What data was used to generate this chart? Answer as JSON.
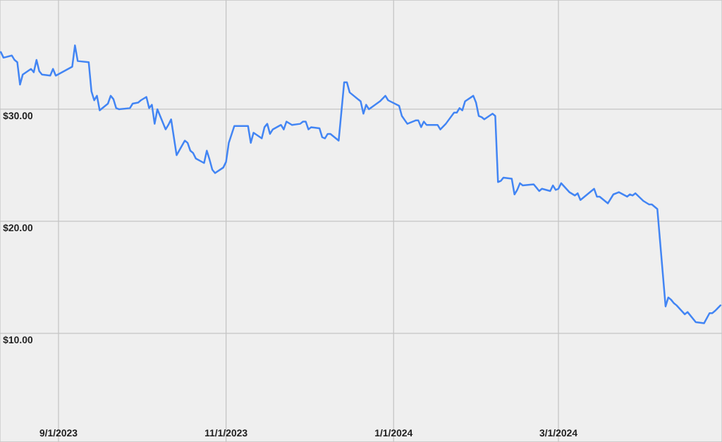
{
  "chart_data": {
    "type": "line",
    "x": [
      "2023-08-11",
      "2023-08-12",
      "2023-08-15",
      "2023-08-16",
      "2023-08-17",
      "2023-08-18",
      "2023-08-19",
      "2023-08-22",
      "2023-08-23",
      "2023-08-24",
      "2023-08-25",
      "2023-08-26",
      "2023-08-29",
      "2023-08-30",
      "2023-08-31",
      "2023-09-06",
      "2023-09-07",
      "2023-09-08",
      "2023-09-12",
      "2023-09-13",
      "2023-09-14",
      "2023-09-15",
      "2023-09-16",
      "2023-09-19",
      "2023-09-20",
      "2023-09-21",
      "2023-09-22",
      "2023-09-23",
      "2023-09-27",
      "2023-09-28",
      "2023-09-30",
      "2023-10-01",
      "2023-10-03",
      "2023-10-04",
      "2023-10-05",
      "2023-10-06",
      "2023-10-07",
      "2023-10-10",
      "2023-10-11",
      "2023-10-12",
      "2023-10-14",
      "2023-10-17",
      "2023-10-18",
      "2023-10-19",
      "2023-10-20",
      "2023-10-21",
      "2023-10-24",
      "2023-10-25",
      "2023-10-26",
      "2023-10-27",
      "2023-10-28",
      "2023-10-31",
      "2023-11-01",
      "2023-11-02",
      "2023-11-04",
      "2023-11-09",
      "2023-11-10",
      "2023-11-11",
      "2023-11-14",
      "2023-11-15",
      "2023-11-16",
      "2023-11-17",
      "2023-11-18",
      "2023-11-21",
      "2023-11-22",
      "2023-11-23",
      "2023-11-25",
      "2023-11-28",
      "2023-11-29",
      "2023-11-30",
      "2023-12-01",
      "2023-12-02",
      "2023-12-05",
      "2023-12-06",
      "2023-12-07",
      "2023-12-08",
      "2023-12-09",
      "2023-12-12",
      "2023-12-14",
      "2023-12-15",
      "2023-12-16",
      "2023-12-20",
      "2023-12-21",
      "2023-12-22",
      "2023-12-23",
      "2023-12-27",
      "2023-12-29",
      "2023-12-30",
      "2024-01-03",
      "2024-01-04",
      "2024-01-06",
      "2024-01-09",
      "2024-01-10",
      "2024-01-11",
      "2024-01-12",
      "2024-01-13",
      "2024-01-17",
      "2024-01-18",
      "2024-01-20",
      "2024-01-23",
      "2024-01-24",
      "2024-01-25",
      "2024-01-26",
      "2024-01-27",
      "2024-01-30",
      "2024-01-31",
      "2024-02-01",
      "2024-02-02",
      "2024-02-03",
      "2024-02-06",
      "2024-02-07",
      "2024-02-08",
      "2024-02-09",
      "2024-02-10",
      "2024-02-13",
      "2024-02-14",
      "2024-02-15",
      "2024-02-16",
      "2024-02-17",
      "2024-02-21",
      "2024-02-23",
      "2024-02-24",
      "2024-02-27",
      "2024-02-28",
      "2024-02-29",
      "2024-03-01",
      "2024-03-02",
      "2024-03-05",
      "2024-03-07",
      "2024-03-08",
      "2024-03-09",
      "2024-03-14",
      "2024-03-15",
      "2024-03-16",
      "2024-03-19",
      "2024-03-21",
      "2024-03-23",
      "2024-03-26",
      "2024-03-27",
      "2024-03-28",
      "2024-03-29",
      "2024-04-01",
      "2024-04-03",
      "2024-04-04",
      "2024-04-06",
      "2024-04-09",
      "2024-04-10",
      "2024-04-11",
      "2024-04-12",
      "2024-04-13",
      "2024-04-16",
      "2024-04-17",
      "2024-04-20",
      "2024-04-23",
      "2024-04-25",
      "2024-04-26",
      "2024-04-27",
      "2024-04-29"
    ],
    "series": [
      {
        "color": "#4285f4",
        "values": [
          35.1,
          34.6,
          34.8,
          34.4,
          34.2,
          32.2,
          33.1,
          33.6,
          33.3,
          34.4,
          33.4,
          33.1,
          33.0,
          33.6,
          33.0,
          33.8,
          35.7,
          34.3,
          34.2,
          31.6,
          30.8,
          31.2,
          29.9,
          30.5,
          31.2,
          30.9,
          30.1,
          30.0,
          30.1,
          30.5,
          30.6,
          30.8,
          31.1,
          30.1,
          30.4,
          28.7,
          30.0,
          28.2,
          28.6,
          29.1,
          25.9,
          27.2,
          27.0,
          26.3,
          26.1,
          25.6,
          25.2,
          26.3,
          25.5,
          24.6,
          24.3,
          24.8,
          25.3,
          27.0,
          28.5,
          28.5,
          27.0,
          27.9,
          27.4,
          28.4,
          28.7,
          27.8,
          28.2,
          28.6,
          28.2,
          28.9,
          28.6,
          28.7,
          28.9,
          28.9,
          28.2,
          28.4,
          28.3,
          27.5,
          27.4,
          27.8,
          27.8,
          27.2,
          32.4,
          32.4,
          31.5,
          30.7,
          29.6,
          30.4,
          30.0,
          30.7,
          31.2,
          30.8,
          30.3,
          29.4,
          28.7,
          29.0,
          29.0,
          28.4,
          28.9,
          28.6,
          28.6,
          28.2,
          28.7,
          29.7,
          29.7,
          30.1,
          29.9,
          30.7,
          31.2,
          30.6,
          29.4,
          29.3,
          29.1,
          29.6,
          29.4,
          23.5,
          23.6,
          23.9,
          23.8,
          22.4,
          22.8,
          23.4,
          23.2,
          23.3,
          22.7,
          22.9,
          22.7,
          23.2,
          22.8,
          22.9,
          23.4,
          22.6,
          22.3,
          22.5,
          21.9,
          22.9,
          22.2,
          22.2,
          21.6,
          22.4,
          22.6,
          22.2,
          22.4,
          22.3,
          22.5,
          21.8,
          21.5,
          21.5,
          21.1,
          12.4,
          13.2,
          13.0,
          12.7,
          12.5,
          11.7,
          11.9,
          11.0,
          10.9,
          11.8,
          11.8,
          12.0,
          12.5
        ]
      }
    ],
    "xlim": [
      "2023-08-10T17:00",
      "2024-04-29T13:00"
    ],
    "xticks": [
      {
        "value": "2023-09-01",
        "label": "9/1/2023"
      },
      {
        "value": "2023-11-01",
        "label": "11/1/2023"
      },
      {
        "value": "2024-01-01",
        "label": "1/1/2024"
      },
      {
        "value": "2024-03-01",
        "label": "3/1/2024"
      }
    ],
    "ylim": [
      0.3,
      39.75
    ],
    "yticks": [
      {
        "value": 10,
        "label": "$10.00"
      },
      {
        "value": 20,
        "label": "$20.00"
      },
      {
        "value": 30,
        "label": "$30.00"
      }
    ],
    "grid": true,
    "line_style": "solid"
  }
}
